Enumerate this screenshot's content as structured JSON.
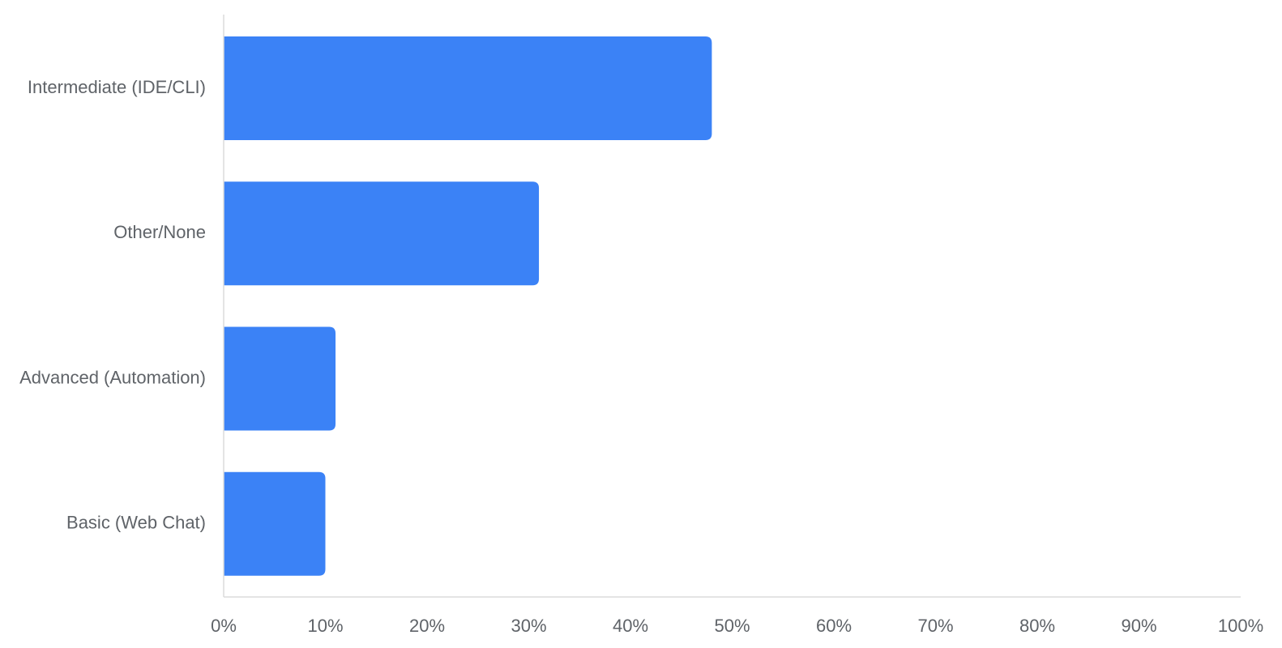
{
  "chart_data": {
    "type": "bar",
    "orientation": "horizontal",
    "categories": [
      "Intermediate (IDE/CLI)",
      "Other/None",
      "Advanced (Automation)",
      "Basic (Web Chat)"
    ],
    "values": [
      48,
      31,
      11,
      10
    ],
    "xlim": [
      0,
      100
    ],
    "x_ticks": [
      0,
      10,
      20,
      30,
      40,
      50,
      60,
      70,
      80,
      90,
      100
    ],
    "x_tick_labels": [
      "0%",
      "10%",
      "20%",
      "30%",
      "40%",
      "50%",
      "60%",
      "70%",
      "80%",
      "90%",
      "100%"
    ],
    "bar_color": "#3b82f6",
    "axis_color": "#dcdcdc",
    "grid": false,
    "title": "",
    "xlabel": "",
    "ylabel": ""
  }
}
